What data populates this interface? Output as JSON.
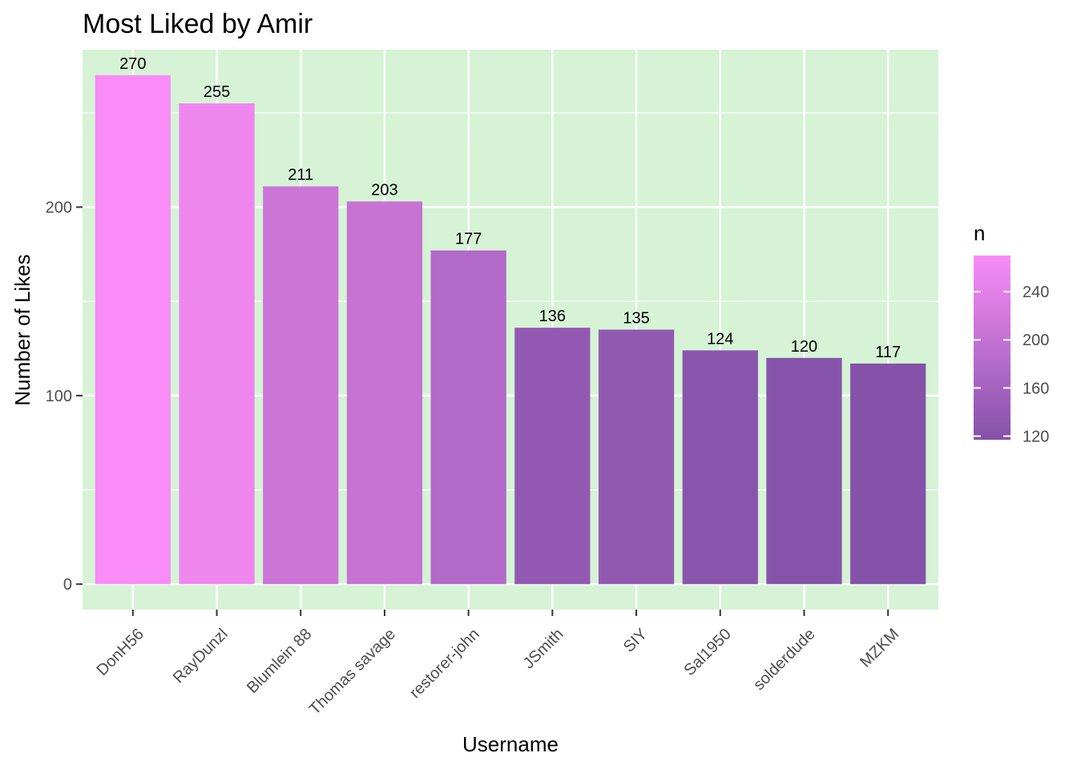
{
  "chart_data": {
    "type": "bar",
    "title": "Most Liked by Amir",
    "xlabel": "Username",
    "ylabel": "Number of Likes",
    "categories": [
      "DonH56",
      "RayDunzl",
      "Blumlein 88",
      "Thomas savage",
      "restorer-john",
      "JSmith",
      "SIY",
      "Sal1950",
      "solderdude",
      "MZKM"
    ],
    "values": [
      270,
      255,
      211,
      203,
      177,
      136,
      135,
      124,
      120,
      117
    ],
    "data_labels": [
      "270",
      "255",
      "211",
      "203",
      "177",
      "136",
      "135",
      "124",
      "120",
      "117"
    ],
    "ylim": [
      -13.5,
      283.5
    ],
    "y_ticks": [
      0,
      100,
      200
    ],
    "y_tick_labels": [
      "0",
      "100",
      "200"
    ],
    "grid": true,
    "panel_background": "#d6f3d6",
    "legend": {
      "title": "n",
      "placement": "right",
      "range": [
        117,
        270
      ],
      "ticks": [
        120,
        160,
        200,
        240
      ],
      "tick_labels": [
        "120",
        "160",
        "200",
        "240"
      ],
      "color_low": "#8452a8",
      "color_high": "#f98cf6"
    }
  }
}
